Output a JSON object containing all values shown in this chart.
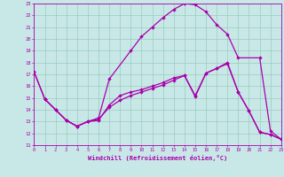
{
  "xlabel": "Windchill (Refroidissement éolien,°C)",
  "bg_color": "#c8e8e8",
  "line_color": "#aa00aa",
  "grid_color": "#99ccbb",
  "xlim": [
    0,
    23
  ],
  "ylim": [
    11,
    23
  ],
  "line1_x": [
    0,
    1,
    2,
    3,
    4,
    5,
    6,
    7,
    9,
    10,
    11,
    12,
    13,
    14,
    15,
    16,
    17,
    18,
    19,
    21,
    22,
    23
  ],
  "line1_y": [
    17.2,
    14.9,
    14.0,
    13.1,
    12.6,
    13.0,
    13.3,
    16.6,
    19.0,
    20.2,
    21.0,
    21.8,
    22.5,
    23.0,
    22.9,
    22.3,
    21.2,
    20.4,
    18.4,
    18.4,
    12.2,
    11.5
  ],
  "line2_x": [
    1,
    2,
    3,
    4,
    5,
    6,
    7,
    8,
    9,
    10,
    11,
    12,
    13,
    14,
    15,
    16,
    17,
    18,
    19,
    20,
    21,
    22,
    23
  ],
  "line2_y": [
    14.9,
    14.0,
    13.1,
    12.6,
    13.0,
    13.2,
    14.2,
    14.8,
    15.2,
    15.5,
    15.8,
    16.1,
    16.5,
    16.9,
    15.1,
    17.1,
    17.5,
    18.0,
    15.5,
    13.9,
    12.1,
    11.9,
    11.5
  ],
  "line3_x": [
    0,
    1,
    2,
    3,
    4,
    5,
    6,
    7,
    8,
    9,
    10,
    11,
    12,
    13,
    14,
    15,
    16,
    17,
    18,
    19,
    20,
    21,
    22,
    23
  ],
  "line3_y": [
    17.2,
    14.9,
    14.0,
    13.1,
    12.6,
    13.0,
    13.1,
    14.4,
    15.2,
    15.5,
    15.7,
    16.0,
    16.3,
    16.7,
    16.9,
    15.2,
    17.1,
    17.5,
    17.9,
    15.5,
    13.9,
    12.1,
    11.9,
    11.5
  ]
}
